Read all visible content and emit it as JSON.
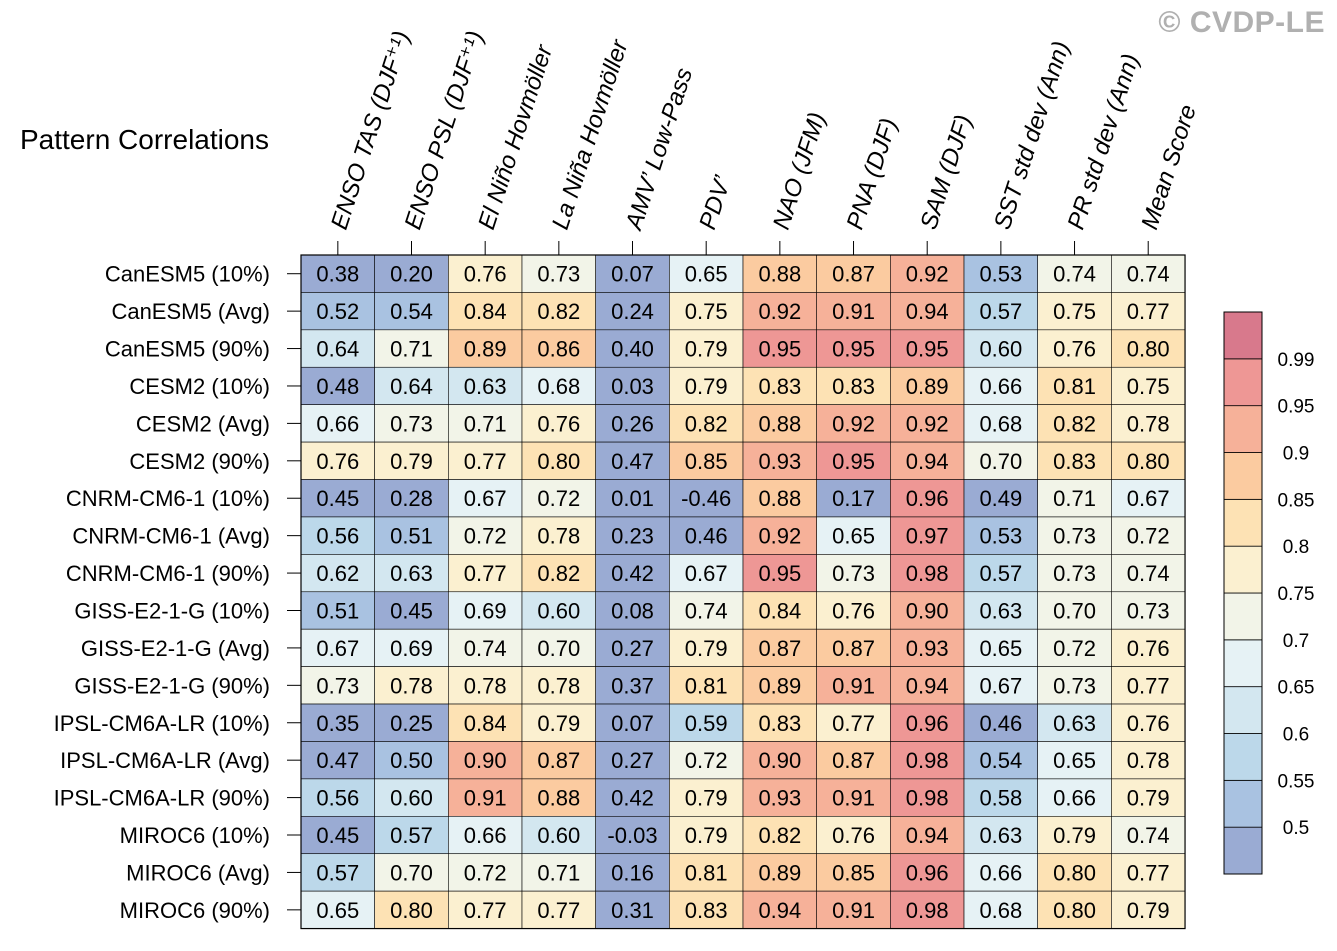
{
  "copyright": "© CVDP-LE",
  "chart_data": {
    "type": "heatmap",
    "title": "Pattern Correlations",
    "columns": [
      "ENSO TAS (DJF⁺¹)",
      "ENSO PSL (DJF⁺¹)",
      "El Niño Hovmöller",
      "La Niña Hovmöller",
      "AMV’ Low-Pass",
      "PDV’",
      "NAO (JFM)",
      "PNA (DJF)",
      "SAM (DJF)",
      "SST std dev (Ann)",
      "PR std dev (Ann)",
      "Mean Score"
    ],
    "rows": [
      "CanESM5 (10%)",
      "CanESM5 (Avg)",
      "CanESM5 (90%)",
      "CESM2 (10%)",
      "CESM2 (Avg)",
      "CESM2 (90%)",
      "CNRM-CM6-1 (10%)",
      "CNRM-CM6-1 (Avg)",
      "CNRM-CM6-1 (90%)",
      "GISS-E2-1-G (10%)",
      "GISS-E2-1-G (Avg)",
      "GISS-E2-1-G (90%)",
      "IPSL-CM6A-LR (10%)",
      "IPSL-CM6A-LR (Avg)",
      "IPSL-CM6A-LR (90%)",
      "MIROC6 (10%)",
      "MIROC6 (Avg)",
      "MIROC6 (90%)"
    ],
    "values": [
      [
        "0.38",
        "0.20",
        "0.76",
        "0.73",
        "0.07",
        "0.65",
        "0.88",
        "0.87",
        "0.92",
        "0.53",
        "0.74",
        "0.74"
      ],
      [
        "0.52",
        "0.54",
        "0.84",
        "0.82",
        "0.24",
        "0.75",
        "0.92",
        "0.91",
        "0.94",
        "0.57",
        "0.75",
        "0.77"
      ],
      [
        "0.64",
        "0.71",
        "0.89",
        "0.86",
        "0.40",
        "0.79",
        "0.95",
        "0.95",
        "0.95",
        "0.60",
        "0.76",
        "0.80"
      ],
      [
        "0.48",
        "0.64",
        "0.63",
        "0.68",
        "0.03",
        "0.79",
        "0.83",
        "0.83",
        "0.89",
        "0.66",
        "0.81",
        "0.75"
      ],
      [
        "0.66",
        "0.73",
        "0.71",
        "0.76",
        "0.26",
        "0.82",
        "0.88",
        "0.92",
        "0.92",
        "0.68",
        "0.82",
        "0.78"
      ],
      [
        "0.76",
        "0.79",
        "0.77",
        "0.80",
        "0.47",
        "0.85",
        "0.93",
        "0.95",
        "0.94",
        "0.70",
        "0.83",
        "0.80"
      ],
      [
        "0.45",
        "0.28",
        "0.67",
        "0.72",
        "0.01",
        "-0.46",
        "0.88",
        "0.17",
        "0.96",
        "0.49",
        "0.71",
        "0.67"
      ],
      [
        "0.56",
        "0.51",
        "0.72",
        "0.78",
        "0.23",
        "0.46",
        "0.92",
        "0.65",
        "0.97",
        "0.53",
        "0.73",
        "0.72"
      ],
      [
        "0.62",
        "0.63",
        "0.77",
        "0.82",
        "0.42",
        "0.67",
        "0.95",
        "0.73",
        "0.98",
        "0.57",
        "0.73",
        "0.74"
      ],
      [
        "0.51",
        "0.45",
        "0.69",
        "0.60",
        "0.08",
        "0.74",
        "0.84",
        "0.76",
        "0.90",
        "0.63",
        "0.70",
        "0.73"
      ],
      [
        "0.67",
        "0.69",
        "0.74",
        "0.70",
        "0.27",
        "0.79",
        "0.87",
        "0.87",
        "0.93",
        "0.65",
        "0.72",
        "0.76"
      ],
      [
        "0.73",
        "0.78",
        "0.78",
        "0.78",
        "0.37",
        "0.81",
        "0.89",
        "0.91",
        "0.94",
        "0.67",
        "0.73",
        "0.77"
      ],
      [
        "0.35",
        "0.25",
        "0.84",
        "0.79",
        "0.07",
        "0.59",
        "0.83",
        "0.77",
        "0.96",
        "0.46",
        "0.63",
        "0.76"
      ],
      [
        "0.47",
        "0.50",
        "0.90",
        "0.87",
        "0.27",
        "0.72",
        "0.90",
        "0.87",
        "0.98",
        "0.54",
        "0.65",
        "0.78"
      ],
      [
        "0.56",
        "0.60",
        "0.91",
        "0.88",
        "0.42",
        "0.79",
        "0.93",
        "0.91",
        "0.98",
        "0.58",
        "0.66",
        "0.79"
      ],
      [
        "0.45",
        "0.57",
        "0.66",
        "0.60",
        "-0.03",
        "0.79",
        "0.82",
        "0.76",
        "0.94",
        "0.63",
        "0.79",
        "0.74"
      ],
      [
        "0.57",
        "0.70",
        "0.72",
        "0.71",
        "0.16",
        "0.81",
        "0.89",
        "0.85",
        "0.96",
        "0.66",
        "0.80",
        "0.77"
      ],
      [
        "0.65",
        "0.80",
        "0.77",
        "0.77",
        "0.31",
        "0.83",
        "0.94",
        "0.91",
        "0.98",
        "0.68",
        "0.80",
        "0.79"
      ]
    ],
    "colorbar": {
      "levels": [
        "0.5",
        "0.55",
        "0.6",
        "0.65",
        "0.7",
        "0.75",
        "0.8",
        "0.85",
        "0.9",
        "0.95",
        "0.99"
      ],
      "level_values": [
        0.5,
        0.55,
        0.6,
        0.65,
        0.7,
        0.75,
        0.8,
        0.85,
        0.9,
        0.95,
        0.99
      ],
      "colors": [
        "#9aabd3",
        "#a9c2e1",
        "#bcd8ea",
        "#d3e7f0",
        "#e6f2f5",
        "#f2f4e8",
        "#fbf0d0",
        "#fde2b4",
        "#fbcba0",
        "#f6b199",
        "#ee9795",
        "#d8798c"
      ]
    }
  }
}
